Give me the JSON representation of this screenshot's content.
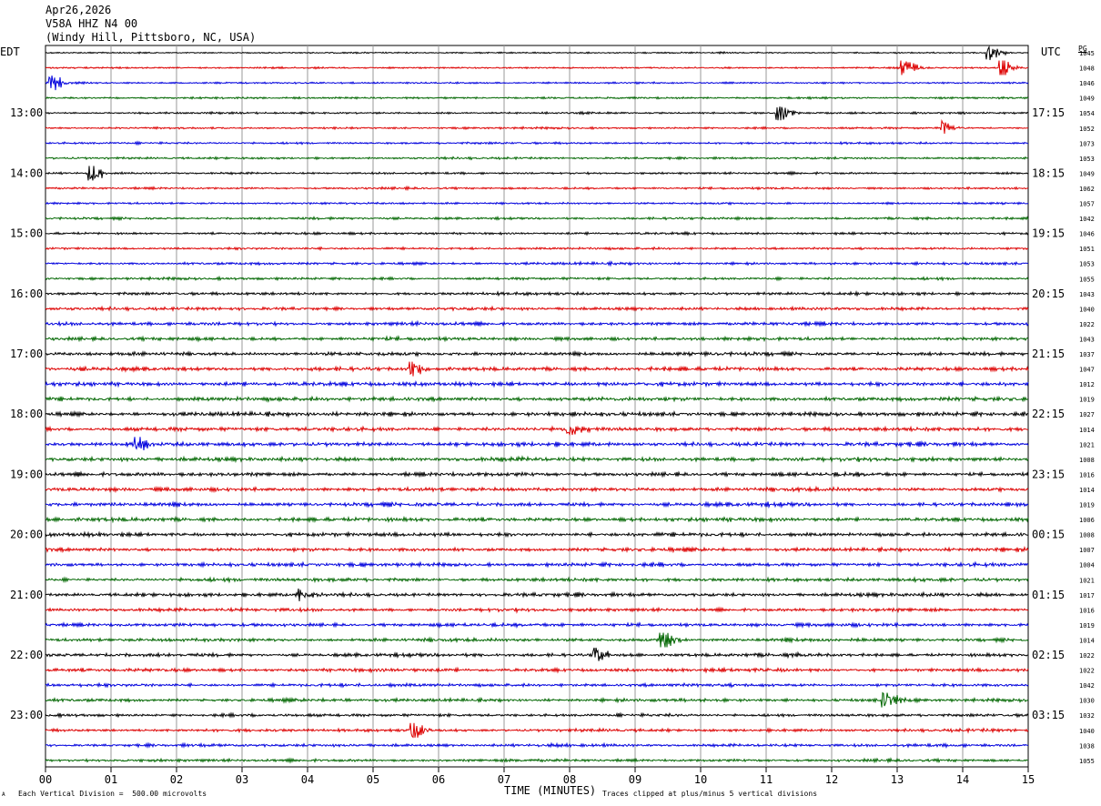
{
  "header": {
    "date": "Apr26,2026",
    "channel": "V58A HHZ N4 00",
    "location": "(Windy Hill, Pittsboro, NC, USA)"
  },
  "left_timezone": "EDT",
  "right_timezone": "UTC",
  "pg_label": "PG",
  "footer": {
    "scale_note": "Each Vertical Division =  500.00 microvolts",
    "clip_note": "Traces clipped at plus/minus 5 vertical divisions",
    "corner_mark": "A"
  },
  "chart_data": {
    "type": "line",
    "xlabel": "TIME (MINUTES)",
    "xlim": [
      0,
      15
    ],
    "x_ticks": [
      "00",
      "01",
      "02",
      "03",
      "04",
      "05",
      "06",
      "07",
      "08",
      "09",
      "10",
      "11",
      "12",
      "13",
      "14",
      "15"
    ],
    "trace_colors": [
      "#000000",
      "#dd0000",
      "#0000dd",
      "#006600"
    ],
    "left_hour_labels": [
      "13:00",
      "14:00",
      "15:00",
      "16:00",
      "17:00",
      "18:00",
      "19:00",
      "20:00",
      "21:00",
      "22:00",
      "23:00"
    ],
    "right_hour_labels": [
      "17:15",
      "18:15",
      "19:15",
      "20:15",
      "21:15",
      "22:15",
      "23:15",
      "00:15",
      "01:15",
      "02:15",
      "03:15"
    ],
    "hour_label_first_row": 4,
    "rows_per_hour": 4,
    "trace_values": [
      "1045",
      "1048",
      "1046",
      "1049",
      "1054",
      "1052",
      "1073",
      "1053",
      "1049",
      "1062",
      "1057",
      "1042",
      "1046",
      "1051",
      "1053",
      "1055",
      "1043",
      "1040",
      "1022",
      "1043",
      "1037",
      "1047",
      "1012",
      "1019",
      "1027",
      "1014",
      "1021",
      "1008",
      "1016",
      "1014",
      "1019",
      "1006",
      "1008",
      "1007",
      "1004",
      "1021",
      "1017",
      "1016",
      "1019",
      "1014",
      "1022",
      "1022",
      "1042",
      "1030",
      "1032",
      "1040",
      "1038",
      "1055"
    ],
    "row_activity": [
      0.35,
      0.4,
      0.4,
      0.45,
      0.45,
      0.45,
      0.5,
      0.5,
      0.5,
      0.5,
      0.5,
      0.55,
      0.55,
      0.55,
      0.6,
      0.6,
      0.7,
      0.75,
      0.8,
      0.8,
      0.85,
      0.9,
      0.95,
      0.95,
      0.95,
      0.95,
      0.95,
      0.95,
      0.9,
      0.9,
      0.9,
      0.9,
      0.9,
      0.85,
      0.85,
      0.85,
      0.85,
      0.8,
      0.8,
      0.8,
      0.8,
      0.8,
      0.75,
      0.75,
      0.7,
      0.7,
      0.7,
      0.65
    ],
    "events": [
      {
        "row": 0,
        "minute": 14.4,
        "amp": 1.5
      },
      {
        "row": 1,
        "minute": 13.1,
        "amp": 2.0
      },
      {
        "row": 1,
        "minute": 14.6,
        "amp": 1.8
      },
      {
        "row": 2,
        "minute": 0.1,
        "amp": 1.4
      },
      {
        "row": 4,
        "minute": 11.2,
        "amp": 1.6
      },
      {
        "row": 5,
        "minute": 13.7,
        "amp": 1.5
      },
      {
        "row": 8,
        "minute": 0.7,
        "amp": 1.8
      },
      {
        "row": 21,
        "minute": 5.6,
        "amp": 1.8
      },
      {
        "row": 25,
        "minute": 8.0,
        "amp": 1.5
      },
      {
        "row": 26,
        "minute": 1.4,
        "amp": 1.6
      },
      {
        "row": 36,
        "minute": 3.9,
        "amp": 1.4
      },
      {
        "row": 39,
        "minute": 9.4,
        "amp": 2.5
      },
      {
        "row": 40,
        "minute": 8.4,
        "amp": 1.6
      },
      {
        "row": 43,
        "minute": 12.8,
        "amp": 2.0
      },
      {
        "row": 45,
        "minute": 5.6,
        "amp": 2.0
      }
    ]
  }
}
